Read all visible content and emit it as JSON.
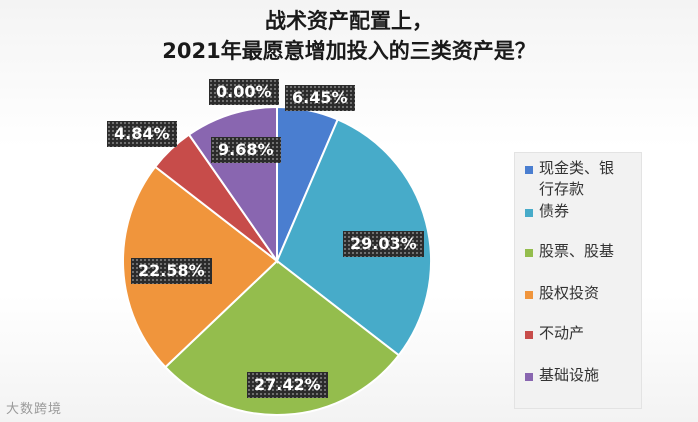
{
  "chart_data": {
    "type": "pie",
    "title_lines": [
      "战术资产配置上，",
      "2021年最愿意增加投入的三类资产是？"
    ],
    "categories": [
      "现金类、银行存款",
      "债券",
      "股票、股基",
      "股权投资",
      "不动产",
      "基础设施"
    ],
    "values": [
      6.45,
      29.03,
      27.42,
      22.58,
      4.84,
      9.68
    ],
    "data_labels": [
      "6.45%",
      "29.03%",
      "27.42%",
      "22.58%",
      "4.84%",
      "9.68%"
    ],
    "extra_label": "0.00%",
    "colors": [
      "#4a7ed0",
      "#47abc9",
      "#94bd4d",
      "#f0953c",
      "#c74c4a",
      "#8966b0"
    ],
    "legend_position": "right"
  },
  "legend": [
    {
      "lines": [
        "现金类、银",
        "行存款"
      ],
      "color": "#4a7ed0"
    },
    {
      "lines": [
        "债券"
      ],
      "color": "#47abc9"
    },
    {
      "lines": [
        "股票、股基"
      ],
      "color": "#94bd4d"
    },
    {
      "lines": [
        "股权投资"
      ],
      "color": "#f0953c"
    },
    {
      "lines": [
        "不动产"
      ],
      "color": "#c74c4a"
    },
    {
      "lines": [
        "基础设施"
      ],
      "color": "#8966b0"
    }
  ],
  "watermark": "大数跨境"
}
